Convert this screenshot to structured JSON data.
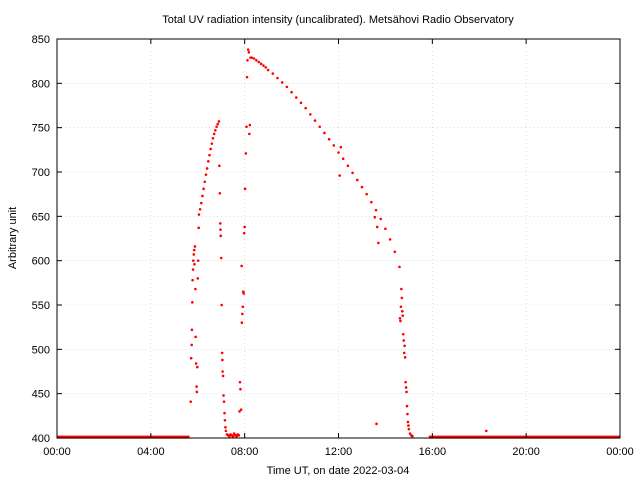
{
  "chart_data": {
    "type": "scatter",
    "title": "Total UV radiation intensity (uncalibrated). Metsähovi Radio Observatory",
    "xlabel": "Time UT, on date 2022-03-04",
    "ylabel": "Arbitrary unit",
    "xlim": [
      0,
      24
    ],
    "ylim": [
      400,
      850
    ],
    "x_ticks": [
      0,
      4,
      8,
      12,
      16,
      20,
      24
    ],
    "x_tick_labels": [
      "00:00",
      "04:00",
      "08:00",
      "12:00",
      "16:00",
      "20:00",
      "00:00"
    ],
    "y_ticks": [
      400,
      450,
      500,
      550,
      600,
      650,
      700,
      750,
      800,
      850
    ],
    "y_tick_labels": [
      "400",
      "450",
      "500",
      "550",
      "600",
      "650",
      "700",
      "750",
      "800",
      "850"
    ],
    "grid": true,
    "legend": false,
    "marker_color": "#ff0000",
    "series": [
      {
        "color": "#ff0000",
        "baseline_segments": [
          {
            "x_start": 0.0,
            "x_end": 5.65,
            "y": 401
          },
          {
            "x_start": 15.85,
            "x_end": 24.0,
            "y": 401
          }
        ],
        "points": [
          [
            5.7,
            441
          ],
          [
            5.72,
            490
          ],
          [
            5.74,
            505
          ],
          [
            5.75,
            522
          ],
          [
            5.77,
            553
          ],
          [
            5.78,
            578
          ],
          [
            5.8,
            590
          ],
          [
            5.81,
            600
          ],
          [
            5.83,
            607
          ],
          [
            5.85,
            612
          ],
          [
            5.86,
            596
          ],
          [
            5.88,
            616
          ],
          [
            5.9,
            568
          ],
          [
            5.91,
            514
          ],
          [
            5.93,
            484
          ],
          [
            5.95,
            458
          ],
          [
            5.96,
            452
          ],
          [
            5.98,
            480
          ],
          [
            6.0,
            580
          ],
          [
            6.02,
            600
          ],
          [
            6.04,
            637
          ],
          [
            6.05,
            652
          ],
          [
            6.1,
            658
          ],
          [
            6.15,
            665
          ],
          [
            6.2,
            673
          ],
          [
            6.25,
            681
          ],
          [
            6.3,
            689
          ],
          [
            6.35,
            697
          ],
          [
            6.4,
            704
          ],
          [
            6.45,
            712
          ],
          [
            6.5,
            719
          ],
          [
            6.55,
            726
          ],
          [
            6.6,
            732
          ],
          [
            6.65,
            738
          ],
          [
            6.7,
            743
          ],
          [
            6.75,
            747
          ],
          [
            6.8,
            751
          ],
          [
            6.85,
            754
          ],
          [
            6.9,
            757
          ],
          [
            6.92,
            707
          ],
          [
            6.94,
            676
          ],
          [
            6.96,
            642
          ],
          [
            6.97,
            635
          ],
          [
            6.98,
            628
          ],
          [
            7.0,
            603
          ],
          [
            7.02,
            550
          ],
          [
            7.04,
            496
          ],
          [
            7.05,
            488
          ],
          [
            7.06,
            475
          ],
          [
            7.08,
            470
          ],
          [
            7.1,
            448
          ],
          [
            7.12,
            441
          ],
          [
            7.14,
            428
          ],
          [
            7.16,
            420
          ],
          [
            7.18,
            412
          ],
          [
            7.2,
            408
          ],
          [
            7.25,
            404
          ],
          [
            7.3,
            403
          ],
          [
            7.35,
            402
          ],
          [
            7.4,
            404
          ],
          [
            7.45,
            403
          ],
          [
            7.5,
            402
          ],
          [
            7.55,
            405
          ],
          [
            7.6,
            403
          ],
          [
            7.65,
            402
          ],
          [
            7.7,
            404
          ],
          [
            7.75,
            403
          ],
          [
            7.78,
            430
          ],
          [
            7.8,
            463
          ],
          [
            7.82,
            455
          ],
          [
            7.85,
            432
          ],
          [
            7.87,
            594
          ],
          [
            7.88,
            530
          ],
          [
            7.9,
            540
          ],
          [
            7.92,
            548
          ],
          [
            7.94,
            565
          ],
          [
            7.96,
            563
          ],
          [
            7.98,
            631
          ],
          [
            8.0,
            638
          ],
          [
            8.02,
            681
          ],
          [
            8.05,
            721
          ],
          [
            8.08,
            751
          ],
          [
            8.1,
            807
          ],
          [
            8.12,
            826
          ],
          [
            8.15,
            838
          ],
          [
            8.18,
            835
          ],
          [
            8.2,
            743
          ],
          [
            8.22,
            753
          ],
          [
            8.25,
            829
          ],
          [
            8.3,
            829
          ],
          [
            8.4,
            828
          ],
          [
            8.5,
            826
          ],
          [
            8.6,
            824
          ],
          [
            8.7,
            822
          ],
          [
            8.8,
            820
          ],
          [
            8.9,
            818
          ],
          [
            9.0,
            815
          ],
          [
            9.2,
            811
          ],
          [
            9.4,
            806
          ],
          [
            9.6,
            801
          ],
          [
            9.8,
            796
          ],
          [
            10.0,
            790
          ],
          [
            10.2,
            784
          ],
          [
            10.4,
            778
          ],
          [
            10.6,
            772
          ],
          [
            10.8,
            765
          ],
          [
            11.0,
            758
          ],
          [
            11.2,
            751
          ],
          [
            11.4,
            744
          ],
          [
            11.6,
            737
          ],
          [
            11.8,
            730
          ],
          [
            12.0,
            722
          ],
          [
            12.2,
            715
          ],
          [
            12.4,
            707
          ],
          [
            12.6,
            699
          ],
          [
            12.8,
            691
          ],
          [
            13.0,
            683
          ],
          [
            13.2,
            675
          ],
          [
            13.4,
            666
          ],
          [
            13.6,
            657
          ],
          [
            13.8,
            647
          ],
          [
            14.0,
            636
          ],
          [
            14.2,
            624
          ],
          [
            14.4,
            610
          ],
          [
            14.6,
            593
          ],
          [
            12.05,
            696
          ],
          [
            12.1,
            728
          ],
          [
            13.55,
            649
          ],
          [
            13.65,
            638
          ],
          [
            13.7,
            620
          ],
          [
            13.62,
            416
          ],
          [
            14.62,
            535
          ],
          [
            14.64,
            532
          ],
          [
            14.66,
            548
          ],
          [
            14.68,
            568
          ],
          [
            14.7,
            558
          ],
          [
            14.72,
            543
          ],
          [
            14.74,
            538
          ],
          [
            14.76,
            517
          ],
          [
            14.78,
            510
          ],
          [
            14.8,
            496
          ],
          [
            14.82,
            504
          ],
          [
            14.84,
            491
          ],
          [
            14.86,
            463
          ],
          [
            14.88,
            457
          ],
          [
            14.9,
            452
          ],
          [
            14.92,
            436
          ],
          [
            14.94,
            427
          ],
          [
            14.96,
            418
          ],
          [
            14.98,
            414
          ],
          [
            15.0,
            410
          ],
          [
            15.05,
            405
          ],
          [
            15.1,
            403
          ],
          [
            15.15,
            402
          ],
          [
            18.3,
            408
          ]
        ]
      }
    ]
  }
}
